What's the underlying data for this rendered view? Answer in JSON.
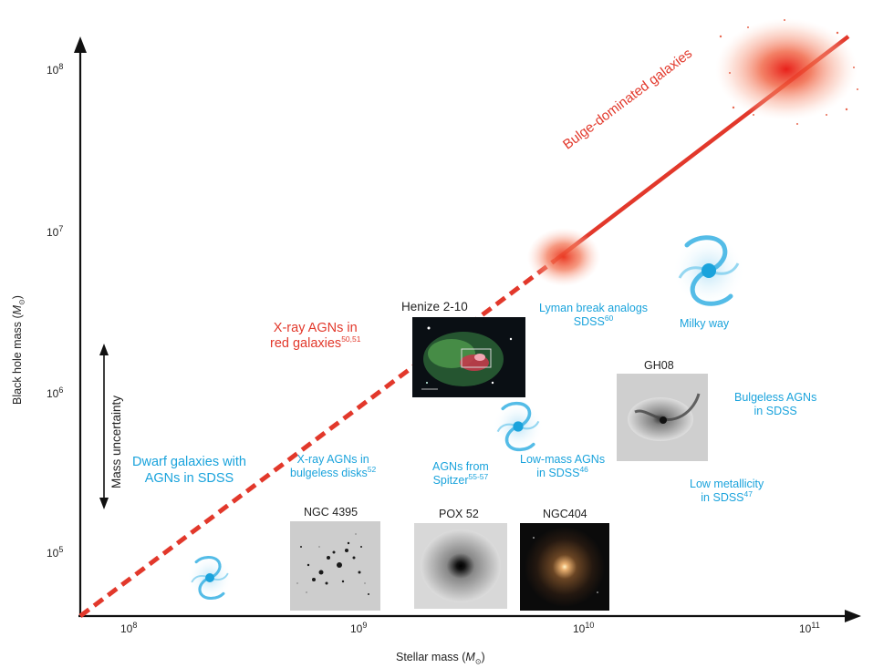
{
  "axes": {
    "x_title": "Stellar mass (",
    "x_title_sym": "M",
    "x_title_sub": "⊙",
    "x_title_end": ")",
    "y_title": "Black hole mass (",
    "y_title_sym": "M",
    "y_title_sub": "⊙",
    "y_title_end": ")",
    "x_ticks": [
      {
        "base": "10",
        "exp": "8"
      },
      {
        "base": "10",
        "exp": "9"
      },
      {
        "base": "10",
        "exp": "10"
      },
      {
        "base": "10",
        "exp": "11"
      }
    ],
    "y_ticks": [
      {
        "base": "10",
        "exp": "5"
      },
      {
        "base": "10",
        "exp": "6"
      },
      {
        "base": "10",
        "exp": "7"
      },
      {
        "base": "10",
        "exp": "8"
      }
    ]
  },
  "labels": {
    "bulge": "Bulge-dominated galaxies",
    "xray_red_1": "X-ray AGNs in",
    "xray_red_2": "red galaxies",
    "xray_red_ref": "50,51",
    "henize": "Henize 2-10",
    "lyman_1": "Lyman break analogs",
    "lyman_2": "SDSS",
    "lyman_ref": "60",
    "milky": "Milky way",
    "gh08": "GH08",
    "bulgeless_1": "Bulgeless AGNs",
    "bulgeless_2": "in SDSS",
    "lowmass_1": "Low-mass AGNs",
    "lowmass_2": "in SDSS",
    "lowmass_ref": "46",
    "lowmet_1": "Low metallicity",
    "lowmet_2": "in SDSS",
    "lowmet_ref": "47",
    "spitzer_1": "AGNs from",
    "spitzer_2": "Spitzer",
    "spitzer_ref": "55-57",
    "xray_disk_1": "X-ray AGNs in",
    "xray_disk_2": "bulgeless disks",
    "xray_disk_ref": "52",
    "dwarf_1": "Dwarf galaxies with",
    "dwarf_2": "AGNs in SDSS",
    "mass_unc": "Mass uncertainty",
    "ngc4395": "NGC 4395",
    "pox52": "POX 52",
    "ngc404": "NGC404"
  },
  "colors": {
    "relation": "#e2382b",
    "blue_text": "#1aa3dc",
    "axis": "#111111"
  }
}
